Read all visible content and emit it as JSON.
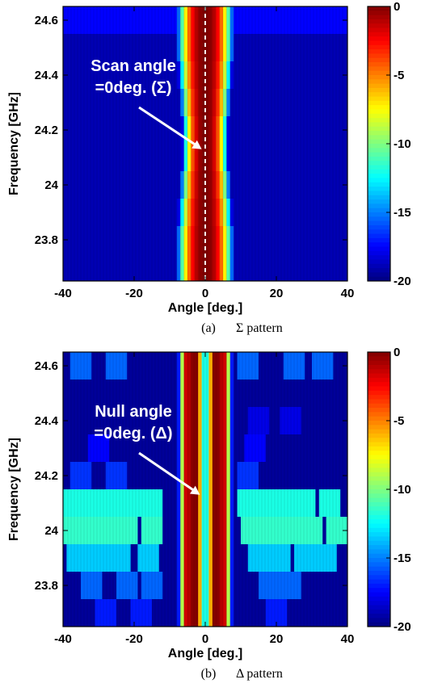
{
  "chart_data": [
    {
      "type": "heatmap",
      "caption_label": "(a)",
      "caption_text": "Σ pattern",
      "xlabel": "Angle [deg.]",
      "ylabel": "Frequency [GHz]",
      "xlim": [
        -40,
        40
      ],
      "ylim": [
        23.65,
        24.65
      ],
      "xticks": [
        -40,
        -20,
        0,
        20,
        40
      ],
      "yticks": [
        23.8,
        24,
        24.2,
        24.4,
        24.6
      ],
      "ytick_labels": [
        "23.8",
        "24",
        "24.2",
        "24.4",
        "24.6"
      ],
      "colorbar": {
        "range": [
          -20,
          0
        ],
        "ticks": [
          0,
          -5,
          -10,
          -15,
          -20
        ],
        "colormap": "jet"
      },
      "annotation": {
        "line1": "Scan angle",
        "line2": "=0deg. (Σ)",
        "arrow_target": [
          -1,
          24.13
        ]
      },
      "reference_line": {
        "x": 0,
        "style": "dashed-white"
      },
      "frequency_rows": [
        {
          "f": 24.6,
          "main_halfwidth": 8,
          "spot_level": -17.5,
          "spots": [
            -30,
            -20,
            12,
            22,
            32
          ]
        },
        {
          "f": 24.5,
          "main_halfwidth": 8,
          "spot_level": -19,
          "spots": []
        },
        {
          "f": 24.4,
          "main_halfwidth": 7.5,
          "spot_level": -19,
          "spots": []
        },
        {
          "f": 24.3,
          "main_halfwidth": 7,
          "spot_level": -19,
          "spots": []
        },
        {
          "f": 24.2,
          "main_halfwidth": 6.5,
          "spot_level": -19,
          "spots": []
        },
        {
          "f": 24.1,
          "main_halfwidth": 6.5,
          "spot_level": -19,
          "spots": []
        },
        {
          "f": 24.0,
          "main_halfwidth": 7,
          "spot_level": -19,
          "spots": []
        },
        {
          "f": 23.9,
          "main_halfwidth": 7.5,
          "spot_level": -19,
          "spots": []
        },
        {
          "f": 23.8,
          "main_halfwidth": 8,
          "spot_level": -19,
          "spots": []
        },
        {
          "f": 23.7,
          "main_halfwidth": 8,
          "spot_level": -19,
          "spots": []
        }
      ]
    },
    {
      "type": "heatmap",
      "caption_label": "(b)",
      "caption_text": "Δ pattern",
      "xlabel": "Angle [deg.]",
      "ylabel": "Frequency [GHz]",
      "xlim": [
        -40,
        40
      ],
      "ylim": [
        23.65,
        24.65
      ],
      "xticks": [
        -40,
        -20,
        0,
        20,
        40
      ],
      "yticks": [
        23.8,
        24,
        24.2,
        24.4,
        24.6
      ],
      "ytick_labels": [
        "23.8",
        "24",
        "24.2",
        "24.4",
        "24.6"
      ],
      "colorbar": {
        "range": [
          -20,
          0
        ],
        "ticks": [
          0,
          -5,
          -10,
          -15,
          -20
        ],
        "colormap": "jet"
      },
      "annotation": {
        "line1": "Null angle",
        "line2": "=0deg. (Δ)",
        "arrow_target": [
          -1.5,
          24.13
        ]
      },
      "null_at": 0,
      "frequency_rows": [
        {
          "f": 24.6,
          "spot_level": -15.5,
          "spots": [
            -35,
            -25,
            12,
            25,
            33
          ]
        },
        {
          "f": 24.5,
          "spot_level": -19,
          "spots": []
        },
        {
          "f": 24.4,
          "spot_level": -18,
          "spots": [
            15,
            24
          ]
        },
        {
          "f": 24.3,
          "spot_level": -17.5,
          "spots": [
            -30,
            14
          ]
        },
        {
          "f": 24.2,
          "spot_level": -16.5,
          "spots": [
            -35,
            -25,
            12
          ]
        },
        {
          "f": 24.1,
          "spot_level": -12,
          "spots": [
            -37,
            -32,
            -26,
            -20,
            -15,
            12,
            18,
            22,
            28,
            35
          ]
        },
        {
          "f": 24.0,
          "spot_level": -11.5,
          "spots": [
            -38,
            -33,
            -28,
            -22,
            -15,
            13,
            19,
            25,
            30,
            37
          ]
        },
        {
          "f": 23.9,
          "spot_level": -13.5,
          "spots": [
            -36,
            -30,
            -24,
            -16,
            15,
            21,
            28,
            34
          ]
        },
        {
          "f": 23.8,
          "spot_level": -15.5,
          "spots": [
            -32,
            -22,
            -15,
            18,
            24
          ]
        },
        {
          "f": 23.7,
          "spot_level": -17,
          "spots": [
            -28,
            -18,
            20
          ]
        }
      ]
    }
  ]
}
